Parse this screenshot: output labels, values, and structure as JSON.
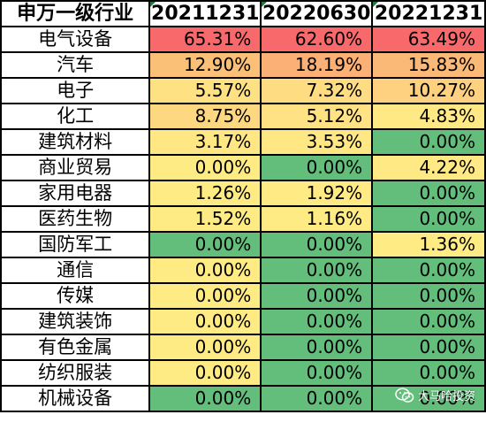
{
  "table": {
    "headers": [
      "申万一级行业",
      "20211231",
      "20220630",
      "20221231"
    ],
    "rows": [
      {
        "name": "电气设备",
        "values": [
          "65.31%",
          "62.60%",
          "63.49%"
        ],
        "colors": [
          "#f8696b",
          "#f8696b",
          "#f8696b"
        ]
      },
      {
        "name": "汽车",
        "values": [
          "12.90%",
          "18.19%",
          "15.83%"
        ],
        "colors": [
          "#fbc077",
          "#fbb176",
          "#fbb977"
        ]
      },
      {
        "name": "电子",
        "values": [
          "5.57%",
          "7.32%",
          "10.27%"
        ],
        "colors": [
          "#fee183",
          "#fddc82",
          "#fdd17f"
        ]
      },
      {
        "name": "化工",
        "values": [
          "8.75%",
          "5.12%",
          "4.83%"
        ],
        "colors": [
          "#fdd880",
          "#fee283",
          "#ffe984"
        ]
      },
      {
        "name": "建筑材料",
        "values": [
          "3.17%",
          "3.53%",
          "0.00%"
        ],
        "colors": [
          "#ffe784",
          "#ffe884",
          "#63be7b"
        ]
      },
      {
        "name": "商业贸易",
        "values": [
          "0.00%",
          "0.00%",
          "4.22%"
        ],
        "colors": [
          "#ffeb84",
          "#63be7b",
          "#ffe984"
        ]
      },
      {
        "name": "家用电器",
        "values": [
          "1.26%",
          "1.92%",
          "0.00%"
        ],
        "colors": [
          "#ffeb84",
          "#ffea84",
          "#63be7b"
        ]
      },
      {
        "name": "医药生物",
        "values": [
          "1.52%",
          "1.16%",
          "0.00%"
        ],
        "colors": [
          "#ffeb84",
          "#ffeb84",
          "#63be7b"
        ]
      },
      {
        "name": "国防军工",
        "values": [
          "0.00%",
          "0.00%",
          "1.36%"
        ],
        "colors": [
          "#63be7b",
          "#63be7b",
          "#ffeb84"
        ]
      },
      {
        "name": "通信",
        "values": [
          "0.00%",
          "0.00%",
          "0.00%"
        ],
        "colors": [
          "#ffeb84",
          "#63be7b",
          "#63be7b"
        ]
      },
      {
        "name": "传媒",
        "values": [
          "0.00%",
          "0.00%",
          "0.00%"
        ],
        "colors": [
          "#ffeb84",
          "#63be7b",
          "#63be7b"
        ]
      },
      {
        "name": "建筑装饰",
        "values": [
          "0.00%",
          "0.00%",
          "0.00%"
        ],
        "colors": [
          "#ffeb84",
          "#63be7b",
          "#63be7b"
        ]
      },
      {
        "name": "有色金属",
        "values": [
          "0.00%",
          "0.00%",
          "0.00%"
        ],
        "colors": [
          "#ffeb84",
          "#63be7b",
          "#63be7b"
        ]
      },
      {
        "name": "纺织服装",
        "values": [
          "0.00%",
          "0.00%",
          "0.00%"
        ],
        "colors": [
          "#ffeb84",
          "#63be7b",
          "#63be7b"
        ]
      },
      {
        "name": "机械设备",
        "values": [
          "0.00%",
          "0.00%",
          "0.00%"
        ],
        "colors": [
          "#63be7b",
          "#63be7b",
          "#63be7b"
        ]
      }
    ]
  },
  "watermark": {
    "text": "大马哈投资",
    "icon": "wechat-icon"
  }
}
